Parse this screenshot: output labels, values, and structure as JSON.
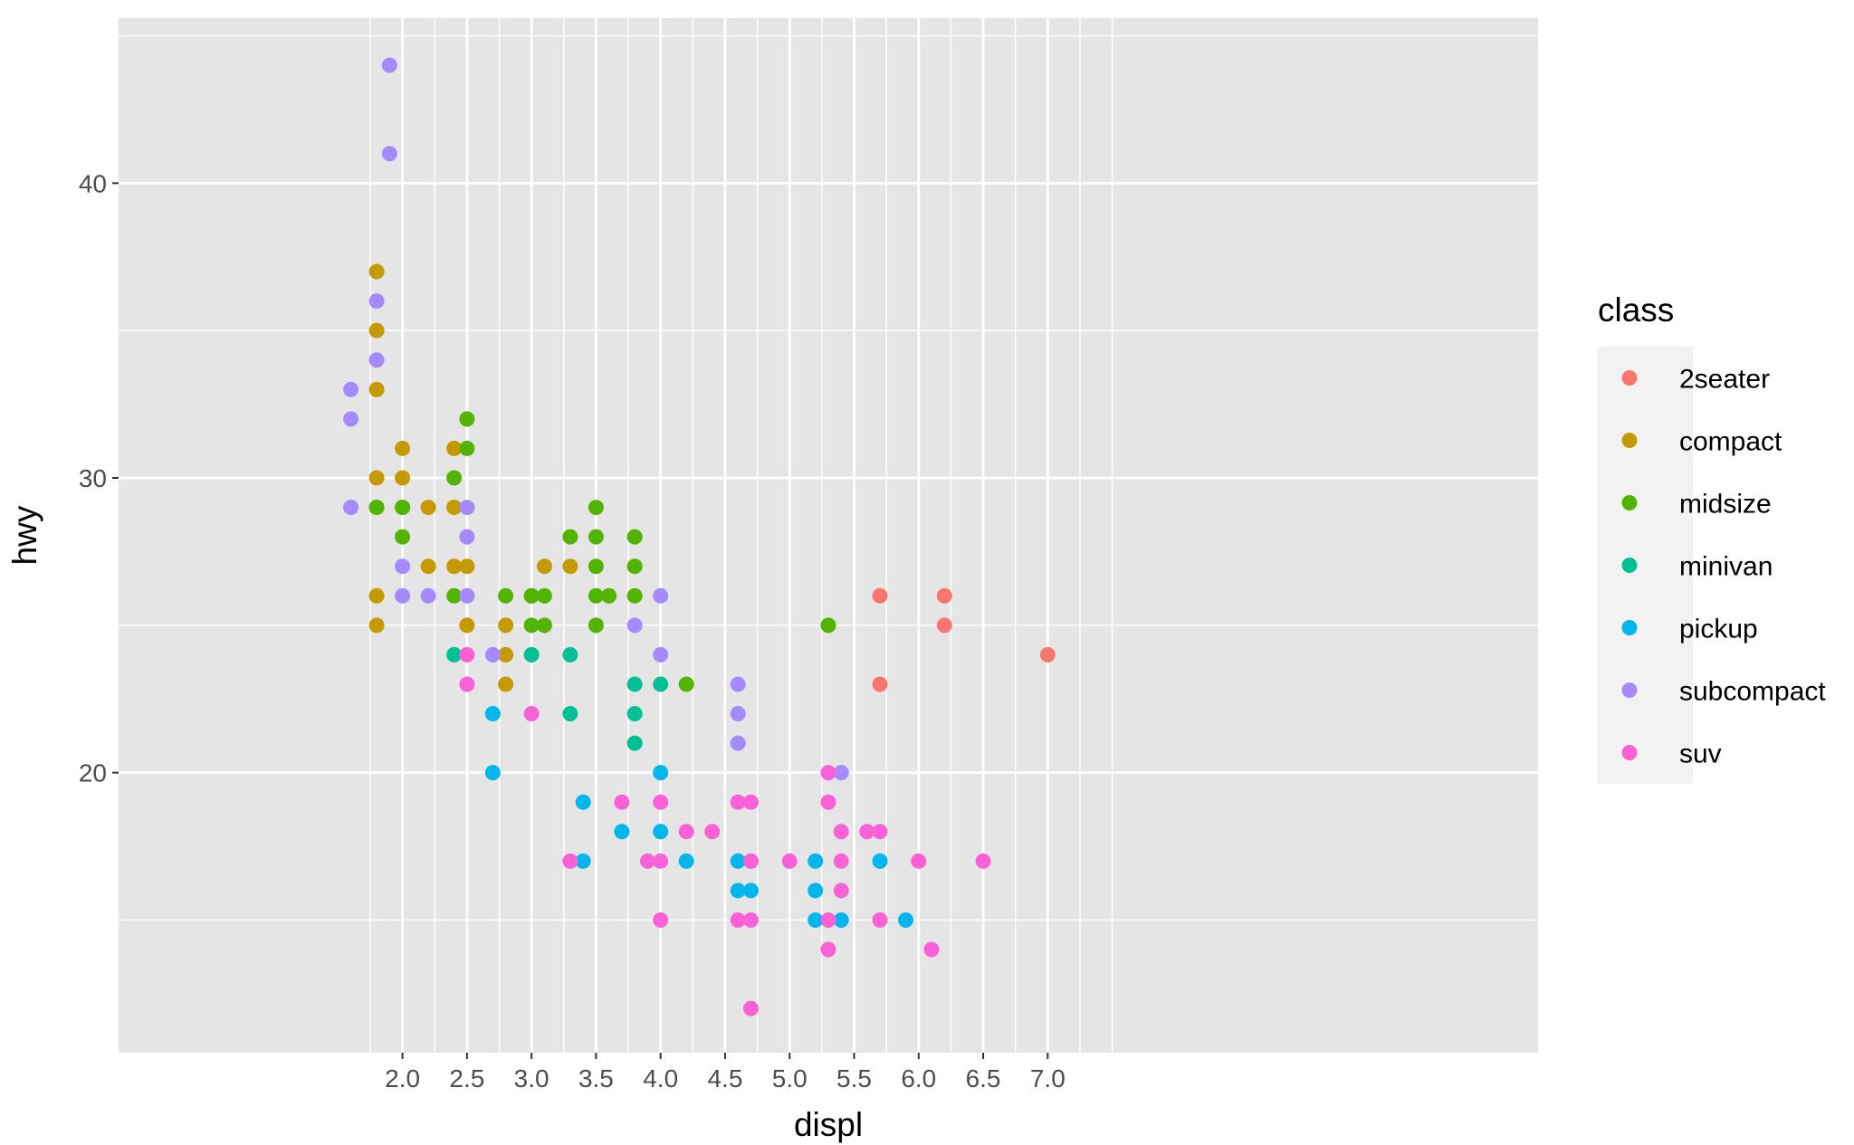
{
  "chart_data": {
    "type": "scatter",
    "xlabel": "displ",
    "ylabel": "hwy",
    "xlim": [
      -0.2,
      10.8
    ],
    "ylim": [
      10.5,
      45.6
    ],
    "x_ticks": [
      2.0,
      2.5,
      3.0,
      3.5,
      4.0,
      4.5,
      5.0,
      5.5,
      6.0,
      6.5,
      7.0
    ],
    "x_tick_labels": [
      "2.0",
      "2.5",
      "3.0",
      "3.5",
      "4.0",
      "4.5",
      "5.0",
      "5.5",
      "6.0",
      "6.5",
      "7.0"
    ],
    "x_minor_gridlines": [
      1.75,
      2.25,
      2.75,
      3.25,
      3.75,
      4.25,
      4.75,
      5.25,
      5.75,
      6.25,
      6.75,
      7.25,
      7.5
    ],
    "y_ticks": [
      20,
      30,
      40
    ],
    "y_tick_labels": [
      "20",
      "30",
      "40"
    ],
    "y_minor_gridlines": [
      15,
      25,
      35,
      45
    ],
    "grid": true,
    "panel_background": "#e5e5e5",
    "gridline_color": "#ffffff",
    "legend": {
      "title": "class",
      "position": "right"
    },
    "series": [
      {
        "name": "2seater",
        "color": "#F8766D",
        "points": [
          [
            5.7,
            26
          ],
          [
            5.7,
            23
          ],
          [
            6.2,
            26
          ],
          [
            6.2,
            25
          ],
          [
            7.0,
            24
          ]
        ]
      },
      {
        "name": "compact",
        "color": "#C49A00",
        "points": [
          [
            1.8,
            37
          ],
          [
            1.8,
            35
          ],
          [
            1.8,
            33
          ],
          [
            1.8,
            30
          ],
          [
            1.8,
            29
          ],
          [
            1.8,
            26
          ],
          [
            1.8,
            25
          ],
          [
            2.0,
            31
          ],
          [
            2.0,
            30
          ],
          [
            2.0,
            29
          ],
          [
            2.2,
            29
          ],
          [
            2.2,
            27
          ],
          [
            2.4,
            31
          ],
          [
            2.4,
            29
          ],
          [
            2.4,
            27
          ],
          [
            2.5,
            27
          ],
          [
            2.5,
            25
          ],
          [
            2.8,
            25
          ],
          [
            2.8,
            24
          ],
          [
            2.8,
            23
          ],
          [
            3.0,
            26
          ],
          [
            3.1,
            27
          ],
          [
            3.3,
            27
          ]
        ]
      },
      {
        "name": "midsize",
        "color": "#53B400",
        "points": [
          [
            1.8,
            29
          ],
          [
            2.0,
            29
          ],
          [
            2.0,
            28
          ],
          [
            2.4,
            30
          ],
          [
            2.4,
            26
          ],
          [
            2.5,
            32
          ],
          [
            2.5,
            31
          ],
          [
            2.8,
            26
          ],
          [
            3.0,
            26
          ],
          [
            3.0,
            25
          ],
          [
            3.1,
            26
          ],
          [
            3.1,
            25
          ],
          [
            3.3,
            28
          ],
          [
            3.5,
            29
          ],
          [
            3.5,
            28
          ],
          [
            3.5,
            27
          ],
          [
            3.5,
            26
          ],
          [
            3.5,
            25
          ],
          [
            3.6,
            26
          ],
          [
            3.8,
            28
          ],
          [
            3.8,
            27
          ],
          [
            3.8,
            26
          ],
          [
            4.2,
            23
          ],
          [
            5.3,
            25
          ]
        ]
      },
      {
        "name": "minivan",
        "color": "#00C094",
        "points": [
          [
            2.4,
            24
          ],
          [
            3.0,
            24
          ],
          [
            3.3,
            24
          ],
          [
            3.3,
            22
          ],
          [
            3.8,
            23
          ],
          [
            3.8,
            22
          ],
          [
            3.8,
            21
          ],
          [
            4.0,
            23
          ]
        ]
      },
      {
        "name": "pickup",
        "color": "#00B6EB",
        "points": [
          [
            2.7,
            22
          ],
          [
            2.7,
            20
          ],
          [
            3.4,
            19
          ],
          [
            3.4,
            17
          ],
          [
            3.7,
            18
          ],
          [
            4.0,
            20
          ],
          [
            4.0,
            18
          ],
          [
            4.2,
            17
          ],
          [
            4.6,
            17
          ],
          [
            4.6,
            16
          ],
          [
            4.7,
            17
          ],
          [
            4.7,
            16
          ],
          [
            5.2,
            17
          ],
          [
            5.2,
            16
          ],
          [
            5.2,
            15
          ],
          [
            5.4,
            15
          ],
          [
            5.7,
            17
          ],
          [
            5.9,
            15
          ]
        ]
      },
      {
        "name": "subcompact",
        "color": "#A58AFF",
        "points": [
          [
            1.6,
            33
          ],
          [
            1.6,
            32
          ],
          [
            1.6,
            29
          ],
          [
            1.8,
            36
          ],
          [
            1.8,
            34
          ],
          [
            1.9,
            44
          ],
          [
            1.9,
            41
          ],
          [
            2.0,
            27
          ],
          [
            2.0,
            26
          ],
          [
            2.2,
            26
          ],
          [
            2.5,
            29
          ],
          [
            2.5,
            28
          ],
          [
            2.5,
            26
          ],
          [
            2.7,
            24
          ],
          [
            3.8,
            25
          ],
          [
            4.0,
            26
          ],
          [
            4.0,
            24
          ],
          [
            4.6,
            23
          ],
          [
            4.6,
            22
          ],
          [
            4.6,
            21
          ],
          [
            5.4,
            20
          ]
        ]
      },
      {
        "name": "suv",
        "color": "#FB61D7",
        "points": [
          [
            2.5,
            24
          ],
          [
            2.5,
            23
          ],
          [
            3.0,
            22
          ],
          [
            3.3,
            17
          ],
          [
            3.7,
            19
          ],
          [
            3.9,
            17
          ],
          [
            4.0,
            19
          ],
          [
            4.0,
            17
          ],
          [
            4.0,
            15
          ],
          [
            4.2,
            18
          ],
          [
            4.4,
            18
          ],
          [
            4.6,
            19
          ],
          [
            4.6,
            15
          ],
          [
            4.7,
            19
          ],
          [
            4.7,
            17
          ],
          [
            4.7,
            15
          ],
          [
            4.7,
            12
          ],
          [
            5.0,
            17
          ],
          [
            5.3,
            20
          ],
          [
            5.3,
            19
          ],
          [
            5.3,
            15
          ],
          [
            5.3,
            14
          ],
          [
            5.4,
            18
          ],
          [
            5.4,
            17
          ],
          [
            5.4,
            16
          ],
          [
            5.6,
            18
          ],
          [
            5.7,
            18
          ],
          [
            5.7,
            15
          ],
          [
            6.0,
            17
          ],
          [
            6.1,
            14
          ],
          [
            6.5,
            17
          ]
        ]
      }
    ]
  }
}
